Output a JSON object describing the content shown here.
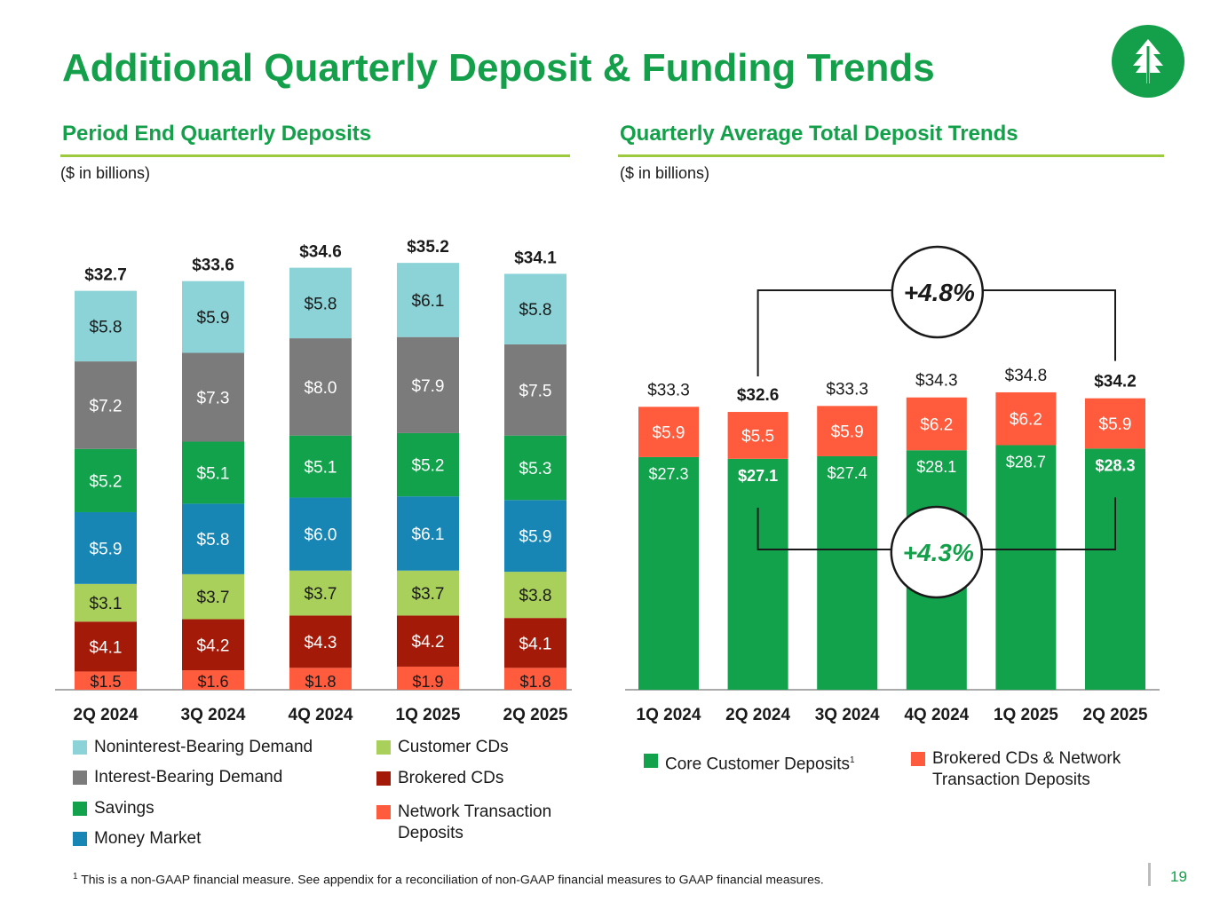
{
  "title": "Additional Quarterly Deposit & Funding Trends",
  "page_number": "19",
  "footnote": {
    "marker": "1",
    "text": "This is a non-GAAP financial measure. See appendix for a reconciliation of non-GAAP financial measures to GAAP financial measures."
  },
  "colors": {
    "brand_green": "#14a04a",
    "rule_green": "#9cc93e",
    "noninterest_bearing_demand": "#8bd3d7",
    "interest_bearing_demand": "#7b7b7b",
    "savings": "#12a24c",
    "money_market": "#1786b5",
    "customer_cds": "#a9d05a",
    "brokered_cds": "#a31a08",
    "network_transaction_deposits": "#ff5b3c",
    "core_customer_deposits": "#12a24c",
    "brokered_and_network": "#ff5b3c"
  },
  "left_panel": {
    "heading": "Period End Quarterly Deposits",
    "units": "($ in billions)",
    "legend_left": [
      "Noninterest-Bearing Demand",
      "Interest-Bearing Demand",
      "Savings",
      "Money Market"
    ],
    "legend_right": [
      "Customer CDs",
      "Brokered CDs"
    ],
    "legend_right_multiline": {
      "line1": "Network Transaction",
      "line2": "Deposits"
    }
  },
  "right_panel": {
    "heading": "Quarterly Average Total Deposit Trends",
    "units": "($ in billions)",
    "legend": {
      "core_label": "Core Customer Deposits",
      "core_footnote": "1",
      "brokered_line1": "Brokered CDs & Network",
      "brokered_line2": "Transaction Deposits"
    },
    "callout_total_growth": "+4.8%",
    "callout_core_growth": "+4.3%"
  },
  "chart_data": [
    {
      "type": "bar",
      "stacked": true,
      "title": "Period End Quarterly Deposits",
      "categories": [
        "2Q 2024",
        "3Q 2024",
        "4Q 2024",
        "1Q 2025",
        "2Q 2025"
      ],
      "series": [
        {
          "name": "Network Transaction Deposits",
          "values": [
            1.5,
            1.6,
            1.8,
            1.9,
            1.8
          ],
          "labels": [
            "$1.5",
            "$1.6",
            "$1.8",
            "$1.9",
            "$1.8"
          ]
        },
        {
          "name": "Brokered CDs",
          "values": [
            4.1,
            4.2,
            4.3,
            4.2,
            4.1
          ],
          "labels": [
            "$4.1",
            "$4.2",
            "$4.3",
            "$4.2",
            "$4.1"
          ]
        },
        {
          "name": "Customer CDs",
          "values": [
            3.1,
            3.7,
            3.7,
            3.7,
            3.8
          ],
          "labels": [
            "$3.1",
            "$3.7",
            "$3.7",
            "$3.7",
            "$3.8"
          ]
        },
        {
          "name": "Money Market",
          "values": [
            5.9,
            5.8,
            6.0,
            6.1,
            5.9
          ],
          "labels": [
            "$5.9",
            "$5.8",
            "$6.0",
            "$6.1",
            "$5.9"
          ]
        },
        {
          "name": "Savings",
          "values": [
            5.2,
            5.1,
            5.1,
            5.2,
            5.3
          ],
          "labels": [
            "$5.2",
            "$5.1",
            "$5.1",
            "$5.2",
            "$5.3"
          ]
        },
        {
          "name": "Interest-Bearing Demand",
          "values": [
            7.2,
            7.3,
            8.0,
            7.9,
            7.5
          ],
          "labels": [
            "$7.2",
            "$7.3",
            "$8.0",
            "$7.9",
            "$7.5"
          ]
        },
        {
          "name": "Noninterest-Bearing Demand",
          "values": [
            5.8,
            5.9,
            5.8,
            6.1,
            5.8
          ],
          "labels": [
            "$5.8",
            "$5.9",
            "$5.8",
            "$6.1",
            "$5.8"
          ]
        }
      ],
      "totals": [
        32.7,
        33.6,
        34.6,
        35.2,
        34.1
      ],
      "total_labels": [
        "$32.7",
        "$33.6",
        "$34.6",
        "$35.2",
        "$34.1"
      ],
      "ylim": [
        0,
        40
      ],
      "grid": false,
      "legend_position": "bottom"
    },
    {
      "type": "bar",
      "stacked": true,
      "title": "Quarterly Average Total Deposit Trends",
      "categories": [
        "1Q 2024",
        "2Q 2024",
        "3Q 2024",
        "4Q 2024",
        "1Q 2025",
        "2Q 2025"
      ],
      "series": [
        {
          "name": "Core Customer Deposits",
          "values": [
            27.3,
            27.1,
            27.4,
            28.1,
            28.7,
            28.3
          ],
          "labels": [
            "$27.3",
            "$27.1",
            "$27.4",
            "$28.1",
            "$28.7",
            "$28.3"
          ]
        },
        {
          "name": "Brokered CDs & Network Transaction Deposits",
          "values": [
            5.9,
            5.5,
            5.9,
            6.2,
            6.2,
            5.9
          ],
          "labels": [
            "$5.9",
            "$5.5",
            "$5.9",
            "$6.2",
            "$6.2",
            "$5.9"
          ]
        }
      ],
      "totals": [
        33.3,
        32.6,
        33.3,
        34.3,
        34.8,
        34.2
      ],
      "total_labels": [
        "$33.3",
        "$32.6",
        "$33.3",
        "$34.3",
        "$34.8",
        "$34.2"
      ],
      "bold_categories": [
        "2Q 2024",
        "2Q 2025"
      ],
      "ylim": [
        0,
        40
      ],
      "grid": false,
      "legend_position": "bottom",
      "annotations": [
        {
          "text": "+4.8%",
          "from": "2Q 2024",
          "to": "2Q 2025",
          "measure": "total"
        },
        {
          "text": "+4.3%",
          "from": "2Q 2024",
          "to": "2Q 2025",
          "measure": "core"
        }
      ]
    }
  ]
}
